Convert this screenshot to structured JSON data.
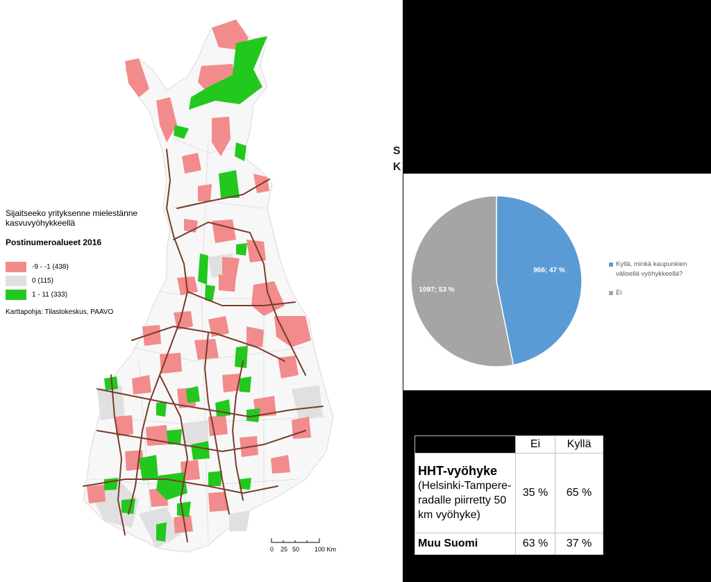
{
  "map": {
    "legend_question": "Sijaitseeko yrityksenne mielestänne kasvuvyöhykkeellä",
    "legend_subtitle": "Postinumeroalueet 2016",
    "classes": [
      {
        "label": "-9 - -1 (438)",
        "color": "#f28b8b"
      },
      {
        "label": "0 (115)",
        "color": "#e0e0e0"
      },
      {
        "label": "1 - 11 (333)",
        "color": "#22c81e"
      }
    ],
    "source": "Karttapohja: Tilastokeskus, PAAVO",
    "scale_labels": [
      "0",
      "25",
      "50",
      "100 Km"
    ],
    "colors": {
      "negative": "#f28b8b",
      "zero": "#e0e0e0",
      "positive": "#22c81e",
      "roads": "#7a3a2a",
      "borders": "#d9d9d9"
    }
  },
  "clipped_title": {
    "line1": "S",
    "line2": "K"
  },
  "chart_data": {
    "type": "pie",
    "title": "",
    "slices": [
      {
        "label": "Kyllä, minkä kaupunkien välisellä vyöhykkeellä?",
        "value": 966,
        "percent": 47,
        "data_label": "966; 47 %",
        "color": "#5b9bd5"
      },
      {
        "label": "Ei",
        "value": 1097,
        "percent": 53,
        "data_label": "1097; 53 %",
        "color": "#a5a5a5"
      }
    ],
    "legend_position": "right"
  },
  "table": {
    "headers": [
      "",
      "Ei",
      "Kyllä"
    ],
    "rows": [
      {
        "name": "HHT-vyöhyke",
        "desc": "(Helsinki-Tampere-radalle piirretty 50 km vyöhyke)",
        "ei": "35 %",
        "kylla": "65 %"
      },
      {
        "name": "Muu Suomi",
        "desc": "",
        "ei": "63 %",
        "kylla": "37 %"
      }
    ]
  }
}
